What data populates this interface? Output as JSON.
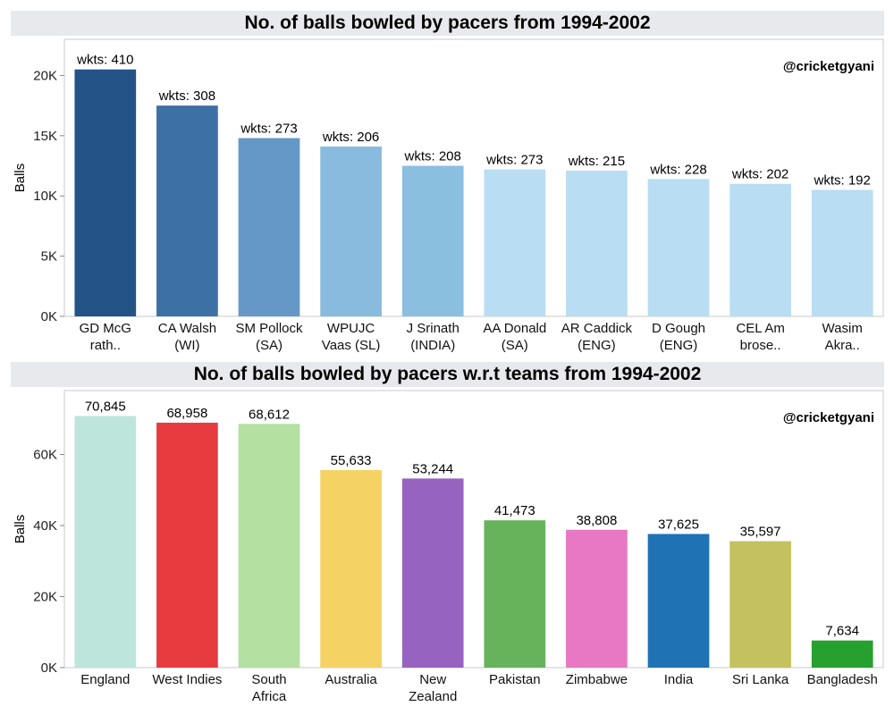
{
  "chart_data": [
    {
      "type": "bar",
      "title": "No. of balls bowled by pacers from 1994-2002",
      "watermark": "@cricketgyani",
      "ylabel": "Balls",
      "xlabel": "",
      "ylim": [
        0,
        23000
      ],
      "yticks": [
        0,
        5000,
        10000,
        15000,
        20000
      ],
      "ytick_labels": [
        "0K",
        "5K",
        "10K",
        "15K",
        "20K"
      ],
      "grid": false,
      "categories": [
        [
          "GD McG",
          "rath.."
        ],
        [
          "CA Walsh",
          "(WI)"
        ],
        [
          "SM Pollock",
          "(SA)"
        ],
        [
          "WPUJC",
          "Vaas (SL)"
        ],
        [
          "J Srinath",
          "(INDIA)"
        ],
        [
          "AA Donald",
          "(SA)"
        ],
        [
          "AR Caddick",
          "(ENG)"
        ],
        [
          "D Gough",
          "(ENG)"
        ],
        [
          "CEL Am",
          "brose.."
        ],
        [
          "Wasim",
          "Akra.."
        ]
      ],
      "values": [
        20500,
        17500,
        14800,
        14100,
        12500,
        12200,
        12100,
        11400,
        11000,
        10500
      ],
      "data_labels": [
        "wkts: 410",
        "wkts: 308",
        "wkts: 273",
        "wkts: 206",
        "wkts: 208",
        "wkts: 273",
        "wkts: 215",
        "wkts: 228",
        "wkts: 202",
        "wkts: 192"
      ],
      "colors": [
        "#245388",
        "#3d70a5",
        "#6598c6",
        "#88bbdd",
        "#8abfe0",
        "#b9ddf2",
        "#b9ddf2",
        "#b9ddf2",
        "#b9ddf2",
        "#b9ddf2"
      ]
    },
    {
      "type": "bar",
      "title": "No. of balls bowled by pacers w.r.t teams from 1994-2002",
      "watermark": "@cricketgyani",
      "ylabel": "Balls",
      "xlabel": "",
      "ylim": [
        0,
        78000
      ],
      "yticks": [
        0,
        20000,
        40000,
        60000
      ],
      "ytick_labels": [
        "0K",
        "20K",
        "40K",
        "60K"
      ],
      "grid": false,
      "categories": [
        [
          "England"
        ],
        [
          "West Indies"
        ],
        [
          "South",
          "Africa"
        ],
        [
          "Australia"
        ],
        [
          "New",
          "Zealand"
        ],
        [
          "Pakistan"
        ],
        [
          "Zimbabwe"
        ],
        [
          "India"
        ],
        [
          "Sri Lanka"
        ],
        [
          "Bangladesh"
        ]
      ],
      "values": [
        70845,
        68958,
        68612,
        55633,
        53244,
        41473,
        38808,
        37625,
        35597,
        7634
      ],
      "data_labels": [
        "70,845",
        "68,958",
        "68,612",
        "55,633",
        "53,244",
        "41,473",
        "38,808",
        "37,625",
        "35,597",
        "7,634"
      ],
      "colors": [
        "#bde5db",
        "#e63c40",
        "#b4e0a1",
        "#f5d264",
        "#9664c0",
        "#66b35c",
        "#e778c3",
        "#1f72b4",
        "#c3c25e",
        "#26a02e"
      ]
    }
  ]
}
